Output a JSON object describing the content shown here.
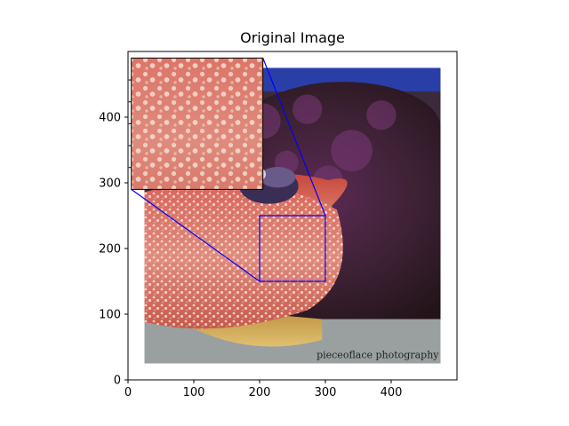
{
  "chart_data": {
    "type": "image",
    "title": "Original Image",
    "xlabel": "",
    "ylabel": "",
    "xlim": [
      0,
      500
    ],
    "ylim": [
      0,
      500
    ],
    "x_ticks": [
      0,
      100,
      200,
      300,
      400
    ],
    "y_ticks": [
      0,
      100,
      200,
      300,
      400
    ],
    "grid": false,
    "image_extent": {
      "x": [
        25,
        475
      ],
      "y": [
        25,
        475
      ]
    },
    "zoom_region": {
      "x": [
        200,
        300
      ],
      "y": [
        150,
        250
      ]
    },
    "inset_extent": {
      "x": [
        5,
        205
      ],
      "y": [
        290,
        490
      ]
    },
    "highlight_color": "#0000ff",
    "watermark": "pieceoflace photography"
  }
}
